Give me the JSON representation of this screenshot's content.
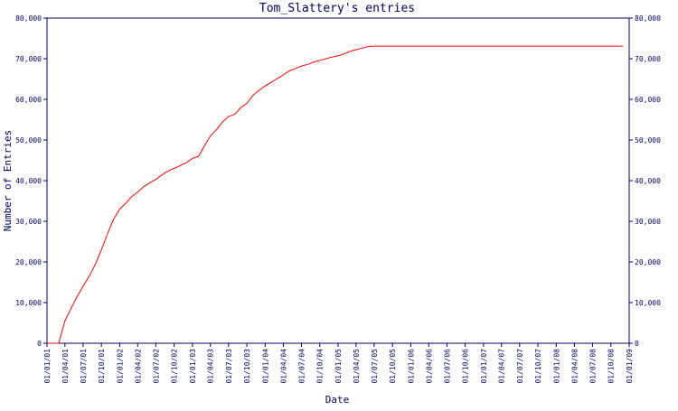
{
  "chart_data": {
    "type": "line",
    "title": "Tom_Slattery's entries",
    "xlabel": "Date",
    "ylabel": "Number of Entries",
    "ylim": [
      0,
      80000
    ],
    "y_ticks": [
      0,
      10000,
      20000,
      30000,
      40000,
      50000,
      60000,
      70000,
      80000
    ],
    "y_tick_labels": [
      "0",
      "10,000",
      "20,000",
      "30,000",
      "40,000",
      "50,000",
      "60,000",
      "70,000",
      "80,000"
    ],
    "x_ticks": [
      "01/01/01",
      "01/04/01",
      "01/07/01",
      "01/10/01",
      "01/01/02",
      "01/04/02",
      "01/07/02",
      "01/10/02",
      "01/01/03",
      "01/04/03",
      "01/07/03",
      "01/10/03",
      "01/01/04",
      "01/04/04",
      "01/07/04",
      "01/10/04",
      "01/01/05",
      "01/04/05",
      "01/07/05",
      "01/10/05",
      "01/01/06",
      "01/04/06",
      "01/07/06",
      "01/10/06",
      "01/01/07",
      "01/04/07",
      "01/07/07",
      "01/10/07",
      "01/01/08",
      "01/04/08",
      "01/07/08",
      "01/10/08",
      "01/01/09"
    ],
    "grid": false,
    "colors": {
      "line": "#ff0000",
      "axis": "#000066",
      "text": "#000066"
    },
    "series": [
      {
        "x": [
          "01/01/01",
          "01/03/01",
          "01/04/01",
          "01/05/01",
          "01/06/01",
          "01/07/01",
          "01/08/01",
          "01/09/01",
          "01/10/01",
          "01/11/01",
          "01/12/01",
          "01/01/02",
          "01/02/02",
          "01/03/02",
          "01/04/02",
          "01/05/02",
          "01/06/02",
          "01/07/02",
          "01/08/02",
          "01/09/02",
          "01/10/02",
          "01/11/02",
          "01/12/02",
          "01/01/03",
          "01/02/03",
          "01/03/03",
          "01/04/03",
          "01/05/03",
          "01/06/03",
          "01/07/03",
          "01/08/03",
          "01/09/03",
          "01/10/03",
          "01/11/03",
          "01/12/03",
          "01/01/04",
          "01/02/04",
          "01/03/04",
          "01/04/04",
          "01/05/04",
          "01/06/04",
          "01/07/04",
          "01/08/04",
          "01/09/04",
          "01/10/04",
          "01/11/04",
          "01/12/04",
          "01/01/05",
          "01/02/05",
          "01/03/05",
          "01/04/05",
          "01/05/05",
          "01/06/05",
          "01/07/05",
          "01/10/05",
          "01/01/06",
          "01/01/07",
          "01/01/08",
          "01/10/08",
          "01/12/08"
        ],
        "y": [
          0,
          0,
          5500,
          8500,
          11500,
          14000,
          16500,
          19500,
          23000,
          27000,
          30500,
          33000,
          34500,
          36000,
          37200,
          38500,
          39500,
          40300,
          41400,
          42400,
          43000,
          43700,
          44400,
          45500,
          46000,
          48500,
          51000,
          52500,
          54500,
          55800,
          56300,
          58000,
          59000,
          61000,
          62200,
          63300,
          64200,
          65100,
          66000,
          67000,
          67600,
          68200,
          68600,
          69200,
          69600,
          70000,
          70400,
          70700,
          71200,
          71800,
          72200,
          72600,
          73000,
          73100,
          73100,
          73100,
          73100,
          73100,
          73100,
          73100
        ]
      }
    ]
  }
}
